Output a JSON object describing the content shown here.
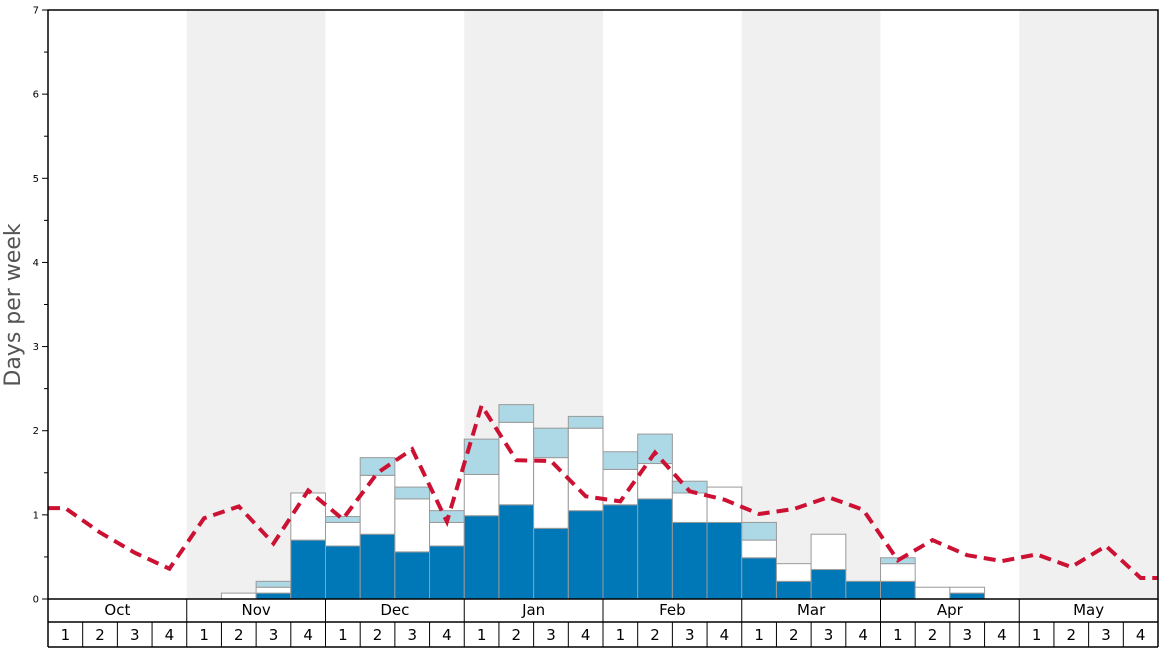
{
  "chart_data": {
    "type": "bar",
    "ylabel": "Days per week",
    "ylim": [
      0,
      7
    ],
    "yticks": [
      0,
      1,
      2,
      3,
      4,
      5,
      6,
      7
    ],
    "months": [
      "Oct",
      "Nov",
      "Dec",
      "Jan",
      "Feb",
      "Mar",
      "Apr",
      "May"
    ],
    "weeks": [
      "1",
      "2",
      "3",
      "4"
    ],
    "shaded_months": [
      "Nov",
      "Jan",
      "Mar",
      "May"
    ],
    "stacked": true,
    "series": [
      {
        "values": [
          0,
          0,
          0,
          0,
          0,
          0,
          0.07,
          0.7,
          0.63,
          0.77,
          0.56,
          0.63,
          0.99,
          1.12,
          0.84,
          1.05,
          1.12,
          1.19,
          0.91,
          0.91,
          0.49,
          0.21,
          0.35,
          0.21,
          0.21,
          0,
          0.07,
          0,
          0,
          0,
          0,
          0
        ]
      },
      {
        "values": [
          0,
          0,
          0,
          0,
          0,
          0.07,
          0.07,
          0.56,
          0.28,
          0.7,
          0.63,
          0.28,
          0.49,
          0.98,
          0.84,
          0.98,
          0.42,
          0.42,
          0.35,
          0.42,
          0.21,
          0.21,
          0.42,
          0,
          0.21,
          0.14,
          0.07,
          0,
          0,
          0,
          0,
          0
        ]
      },
      {
        "values": [
          0,
          0,
          0,
          0,
          0,
          0,
          0.07,
          0,
          0.07,
          0.21,
          0.14,
          0.14,
          0.42,
          0.21,
          0.35,
          0.14,
          0.21,
          0.35,
          0.14,
          0,
          0.21,
          0,
          0,
          0,
          0.07,
          0,
          0,
          0,
          0,
          0,
          0,
          0
        ]
      }
    ],
    "line": {
      "style": "dashed",
      "values": [
        1.08,
        0.79,
        0.55,
        0.36,
        0.96,
        1.1,
        0.66,
        1.29,
        0.95,
        1.5,
        1.78,
        0.92,
        2.3,
        1.65,
        1.64,
        1.22,
        1.16,
        1.74,
        1.28,
        1.18,
        1.01,
        1.07,
        1.21,
        1.06,
        0.46,
        0.7,
        0.52,
        0.45,
        0.53,
        0.38,
        0.63,
        0.25
      ]
    },
    "colors": {
      "series": [
        "#0077b6",
        "#ffffff",
        "#add8e6"
      ],
      "bar_edge": "#9a9a9a",
      "line": "#cc1133",
      "shade": "#f0f0f0",
      "axis": "#000000",
      "ylabel": "#555555"
    },
    "grid": false,
    "legend": "none"
  }
}
